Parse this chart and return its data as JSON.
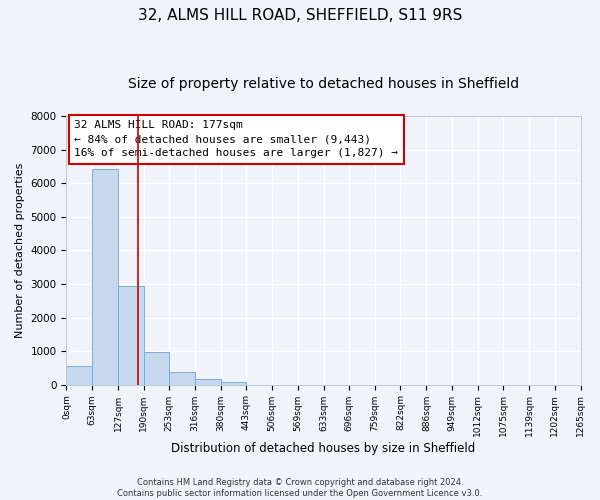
{
  "title": "32, ALMS HILL ROAD, SHEFFIELD, S11 9RS",
  "subtitle": "Size of property relative to detached houses in Sheffield",
  "xlabel": "Distribution of detached houses by size in Sheffield",
  "ylabel": "Number of detached properties",
  "bar_values": [
    550,
    6430,
    2930,
    970,
    390,
    170,
    80,
    0,
    0,
    0,
    0,
    0,
    0,
    0,
    0,
    0,
    0,
    0,
    0,
    0
  ],
  "bin_edges": [
    0,
    63,
    127,
    190,
    253,
    316,
    380,
    443,
    506,
    569,
    633,
    696,
    759,
    822,
    886,
    949,
    1012,
    1075,
    1139,
    1202,
    1265
  ],
  "tick_labels": [
    "0sqm",
    "63sqm",
    "127sqm",
    "190sqm",
    "253sqm",
    "316sqm",
    "380sqm",
    "443sqm",
    "506sqm",
    "569sqm",
    "633sqm",
    "696sqm",
    "759sqm",
    "822sqm",
    "886sqm",
    "949sqm",
    "1012sqm",
    "1075sqm",
    "1139sqm",
    "1202sqm",
    "1265sqm"
  ],
  "bar_color": "#c5d8ee",
  "bar_edge_color": "#7aaed4",
  "vline_x": 177,
  "vline_color": "#cc0000",
  "annotation_title": "32 ALMS HILL ROAD: 177sqm",
  "annotation_line1": "← 84% of detached houses are smaller (9,443)",
  "annotation_line2": "16% of semi-detached houses are larger (1,827) →",
  "annotation_box_color": "#ffffff",
  "annotation_box_edge": "#cc0000",
  "ylim": [
    0,
    8000
  ],
  "yticks": [
    0,
    1000,
    2000,
    3000,
    4000,
    5000,
    6000,
    7000,
    8000
  ],
  "footer_line1": "Contains HM Land Registry data © Crown copyright and database right 2024.",
  "footer_line2": "Contains public sector information licensed under the Open Government Licence v3.0.",
  "background_color": "#f0f4fa",
  "plot_background": "#f0f4fa",
  "grid_color": "#ffffff",
  "title_fontsize": 11,
  "subtitle_fontsize": 10,
  "annotation_fontsize": 8,
  "ylabel_fontsize": 8,
  "xlabel_fontsize": 8.5,
  "footer_fontsize": 6,
  "tick_fontsize": 6.5
}
